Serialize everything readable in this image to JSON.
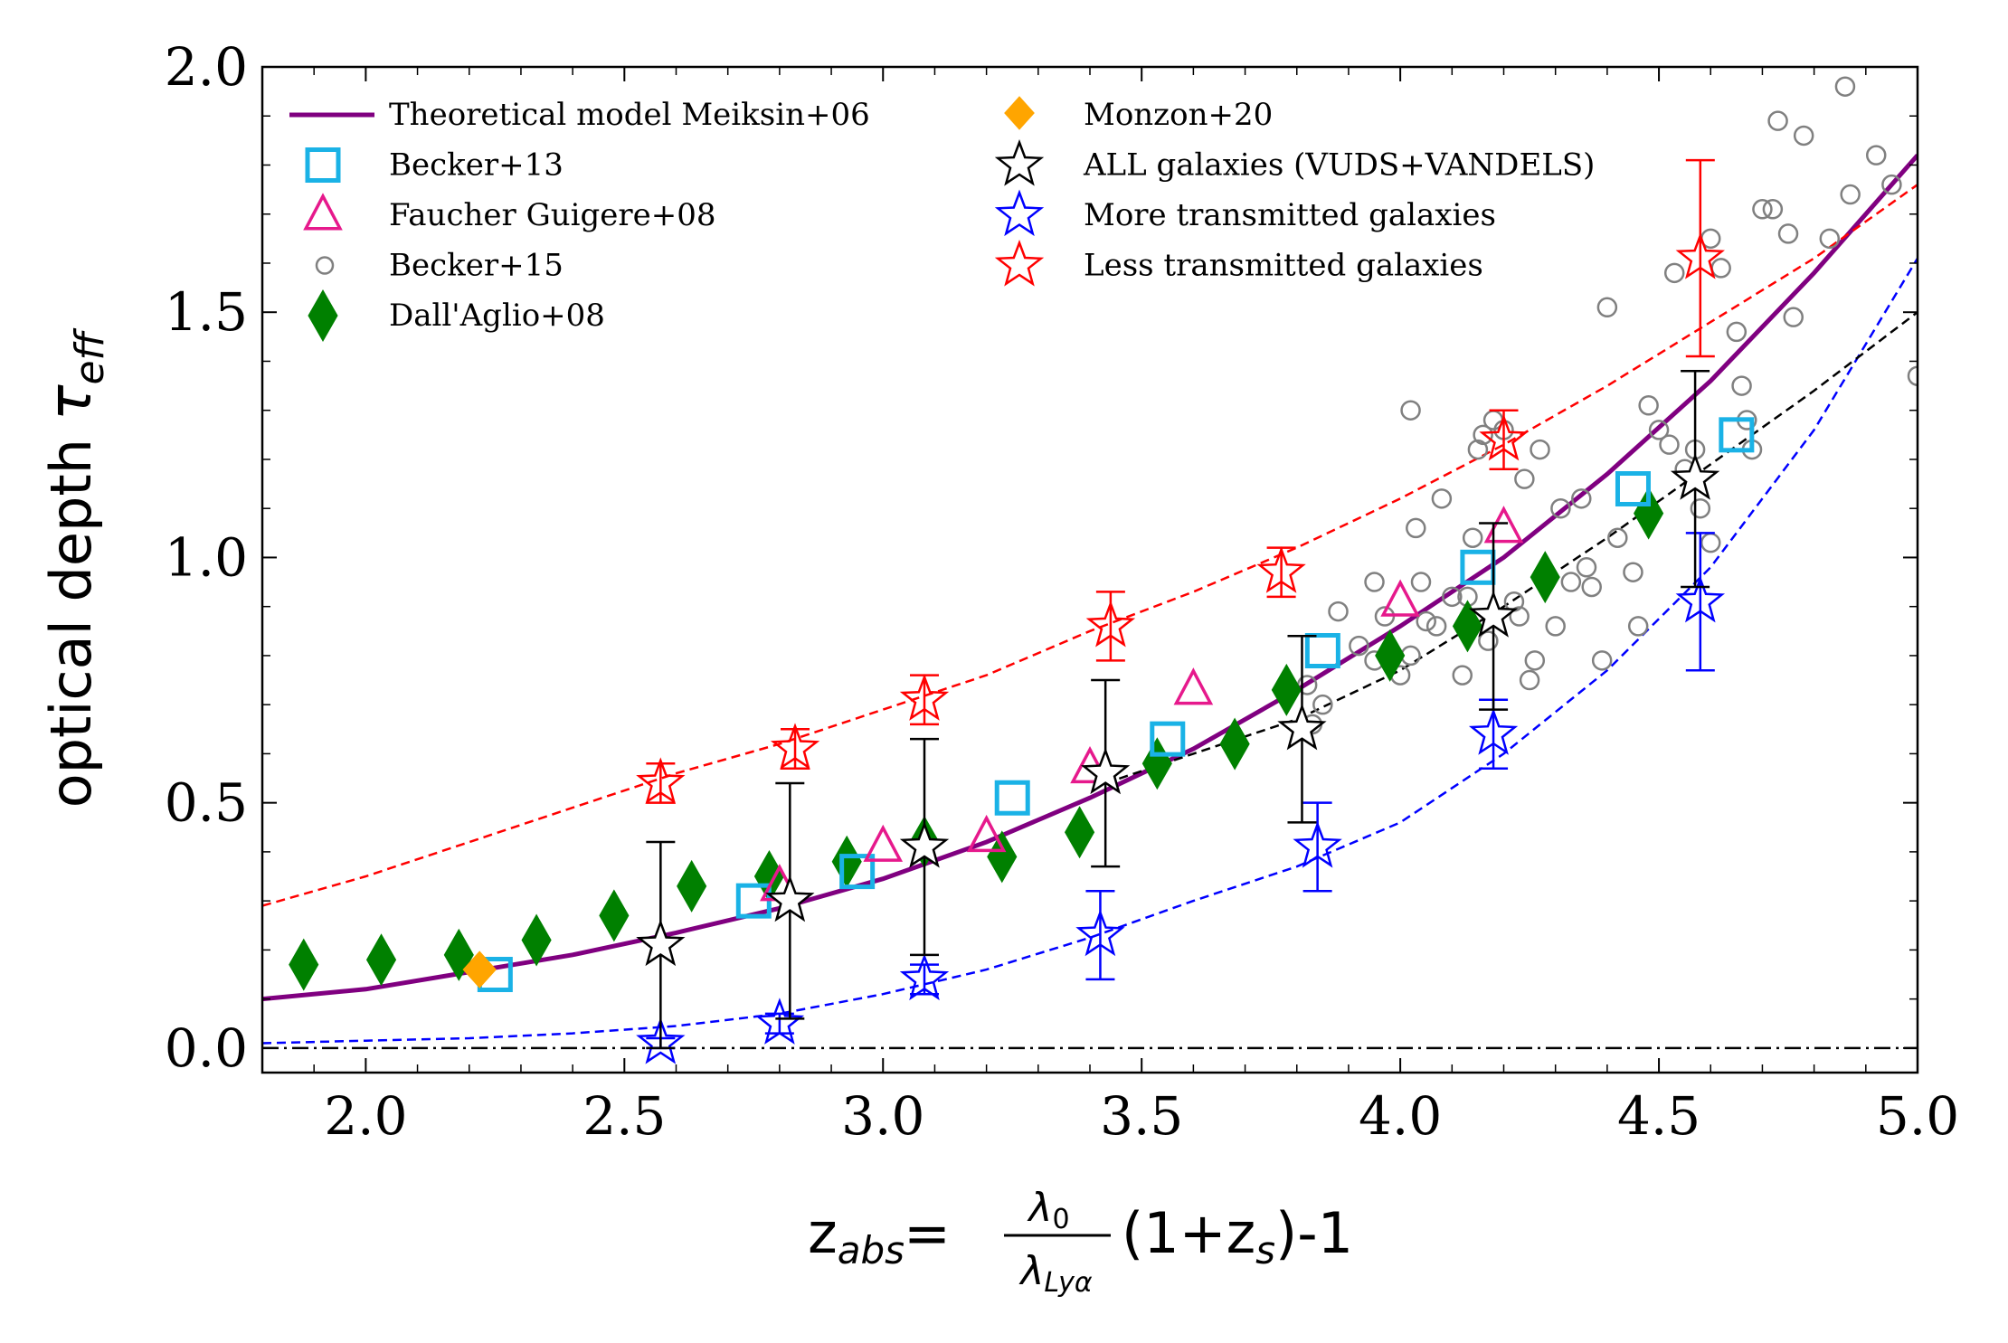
{
  "chart_data": {
    "type": "scatter",
    "title": "",
    "ylabel": {
      "main": "optical depth ",
      "symbol": "τ",
      "sub": "eff"
    },
    "xlabel": {
      "z": "z",
      "abs": "abs",
      "eq": "=",
      "num": "λ",
      "num_sub": "0",
      "den": "λ",
      "den_sub": "Lyα",
      "rest1": "(1+z",
      "rest_sub": "s",
      "rest2": ")-1"
    },
    "xlim": [
      1.8,
      5.0
    ],
    "ylim": [
      -0.05,
      2.0
    ],
    "xticks": [
      {
        "v": 2.0,
        "label": "2.0"
      },
      {
        "v": 2.5,
        "label": "2.5"
      },
      {
        "v": 3.0,
        "label": "3.0"
      },
      {
        "v": 3.5,
        "label": "3.5"
      },
      {
        "v": 4.0,
        "label": "4.0"
      },
      {
        "v": 4.5,
        "label": "4.5"
      },
      {
        "v": 5.0,
        "label": "5.0"
      }
    ],
    "yticks": [
      {
        "v": 0.0,
        "label": "0.0"
      },
      {
        "v": 0.5,
        "label": "0.5"
      },
      {
        "v": 1.0,
        "label": "1.0"
      },
      {
        "v": 1.5,
        "label": "1.5"
      },
      {
        "v": 2.0,
        "label": "2.0"
      }
    ],
    "legend": [
      {
        "name": "Theoretical model Meiksin+06",
        "marker": "line",
        "color": "#800080"
      },
      {
        "name": "Becker+13",
        "marker": "square",
        "color": "#1ab2e6"
      },
      {
        "name": "Faucher Guigere+08",
        "marker": "triangle",
        "color": "#e6198c"
      },
      {
        "name": "Becker+15",
        "marker": "circle",
        "color": "#808080"
      },
      {
        "name": "Dall'Aglio+08",
        "marker": "diamond",
        "color": "#008000"
      },
      {
        "name": "Monzon+20",
        "marker": "diamond-filled",
        "color": "#ffa500"
      },
      {
        "name": "ALL galaxies (VUDS+VANDELS)",
        "marker": "star",
        "color": "#000000"
      },
      {
        "name": "More transmitted galaxies",
        "marker": "star",
        "color": "#0000ff"
      },
      {
        "name": "Less transmitted galaxies",
        "marker": "star",
        "color": "#ff0000"
      }
    ],
    "series": [
      {
        "name": "Becker+13",
        "marker": "square",
        "color": "#1ab2e6",
        "points": [
          [
            2.25,
            0.15
          ],
          [
            2.75,
            0.3
          ],
          [
            2.95,
            0.36
          ],
          [
            3.25,
            0.51
          ],
          [
            3.55,
            0.63
          ],
          [
            3.85,
            0.81
          ],
          [
            4.15,
            0.98
          ],
          [
            4.45,
            1.14
          ],
          [
            4.65,
            1.25
          ]
        ]
      },
      {
        "name": "Faucher Guigere+08",
        "marker": "triangle",
        "color": "#e6198c",
        "points": [
          [
            2.8,
            0.33
          ],
          [
            3.0,
            0.41
          ],
          [
            3.2,
            0.43
          ],
          [
            3.4,
            0.57
          ],
          [
            3.6,
            0.73
          ],
          [
            4.0,
            0.91
          ],
          [
            4.2,
            1.06
          ]
        ]
      },
      {
        "name": "Dall'Aglio+08",
        "marker": "diamond",
        "color": "#008000",
        "points": [
          [
            1.88,
            0.17
          ],
          [
            2.03,
            0.18
          ],
          [
            2.18,
            0.19
          ],
          [
            2.33,
            0.22
          ],
          [
            2.48,
            0.27
          ],
          [
            2.63,
            0.33
          ],
          [
            2.78,
            0.35
          ],
          [
            2.93,
            0.38
          ],
          [
            3.08,
            0.42
          ],
          [
            3.23,
            0.39
          ],
          [
            3.38,
            0.44
          ],
          [
            3.53,
            0.58
          ],
          [
            3.68,
            0.62
          ],
          [
            3.78,
            0.73
          ],
          [
            3.98,
            0.8
          ],
          [
            4.13,
            0.86
          ],
          [
            4.28,
            0.96
          ],
          [
            4.48,
            1.09
          ]
        ]
      },
      {
        "name": "Monzon+20",
        "marker": "diamond-filled",
        "color": "#ffa500",
        "points": [
          [
            2.22,
            0.16
          ]
        ]
      },
      {
        "name": "Becker+15",
        "marker": "circle",
        "color": "#808080",
        "points": [
          [
            3.82,
            0.74
          ],
          [
            3.83,
            0.66
          ],
          [
            3.85,
            0.7
          ],
          [
            3.88,
            0.89
          ],
          [
            3.92,
            0.82
          ],
          [
            3.95,
            0.79
          ],
          [
            3.95,
            0.95
          ],
          [
            3.97,
            0.88
          ],
          [
            4.0,
            0.76
          ],
          [
            4.02,
            0.8
          ],
          [
            4.02,
            1.3
          ],
          [
            4.03,
            1.06
          ],
          [
            4.04,
            0.95
          ],
          [
            4.05,
            0.87
          ],
          [
            4.07,
            0.86
          ],
          [
            4.08,
            1.12
          ],
          [
            4.1,
            0.92
          ],
          [
            4.12,
            0.76
          ],
          [
            4.13,
            0.92
          ],
          [
            4.14,
            1.04
          ],
          [
            4.15,
            1.22
          ],
          [
            4.16,
            1.25
          ],
          [
            4.17,
            0.83
          ],
          [
            4.18,
            1.28
          ],
          [
            4.2,
            1.26
          ],
          [
            4.22,
            0.91
          ],
          [
            4.23,
            0.88
          ],
          [
            4.24,
            1.16
          ],
          [
            4.25,
            0.75
          ],
          [
            4.26,
            0.79
          ],
          [
            4.27,
            1.22
          ],
          [
            4.3,
            0.86
          ],
          [
            4.31,
            1.1
          ],
          [
            4.33,
            0.95
          ],
          [
            4.35,
            1.12
          ],
          [
            4.36,
            0.98
          ],
          [
            4.37,
            0.94
          ],
          [
            4.39,
            0.79
          ],
          [
            4.4,
            1.51
          ],
          [
            4.42,
            1.04
          ],
          [
            4.45,
            0.97
          ],
          [
            4.46,
            0.86
          ],
          [
            4.48,
            1.31
          ],
          [
            4.5,
            1.26
          ],
          [
            4.52,
            1.23
          ],
          [
            4.53,
            1.58
          ],
          [
            4.55,
            1.18
          ],
          [
            4.57,
            1.22
          ],
          [
            4.58,
            1.1
          ],
          [
            4.6,
            1.03
          ],
          [
            4.6,
            1.65
          ],
          [
            4.62,
            1.59
          ],
          [
            4.65,
            1.46
          ],
          [
            4.66,
            1.35
          ],
          [
            4.67,
            1.28
          ],
          [
            4.68,
            1.22
          ],
          [
            4.7,
            1.71
          ],
          [
            4.72,
            1.71
          ],
          [
            4.73,
            1.89
          ],
          [
            4.75,
            1.66
          ],
          [
            4.76,
            1.49
          ],
          [
            4.78,
            1.86
          ],
          [
            4.83,
            1.65
          ],
          [
            4.86,
            1.96
          ],
          [
            4.87,
            1.74
          ],
          [
            4.92,
            1.82
          ],
          [
            4.95,
            1.76
          ],
          [
            5.0,
            1.37
          ]
        ]
      },
      {
        "name": "ALL galaxies (VUDS+VANDELS)",
        "marker": "star",
        "color": "#000000",
        "points": [
          [
            2.57,
            0.21,
            0.21,
            0.21
          ],
          [
            2.82,
            0.3,
            0.24,
            0.24
          ],
          [
            3.08,
            0.41,
            0.22,
            0.22
          ],
          [
            3.43,
            0.56,
            0.19,
            0.19
          ],
          [
            3.81,
            0.65,
            0.19,
            0.19
          ],
          [
            4.18,
            0.88,
            0.19,
            0.19
          ],
          [
            4.57,
            1.16,
            0.22,
            0.22
          ]
        ]
      },
      {
        "name": "More transmitted galaxies",
        "marker": "star",
        "color": "#0000ff",
        "points": [
          [
            2.57,
            0.01,
            0.01,
            0.01
          ],
          [
            2.8,
            0.05,
            0.02,
            0.02
          ],
          [
            3.08,
            0.14,
            0.03,
            0.03
          ],
          [
            3.42,
            0.23,
            0.09,
            0.09
          ],
          [
            3.84,
            0.41,
            0.09,
            0.09
          ],
          [
            4.18,
            0.64,
            0.07,
            0.07
          ],
          [
            4.58,
            0.91,
            0.14,
            0.14
          ]
        ]
      },
      {
        "name": "Less transmitted galaxies",
        "marker": "star",
        "color": "#ff0000",
        "points": [
          [
            2.57,
            0.54,
            0.04,
            0.04
          ],
          [
            2.83,
            0.61,
            0.04,
            0.04
          ],
          [
            3.08,
            0.71,
            0.05,
            0.05
          ],
          [
            3.44,
            0.86,
            0.07,
            0.07
          ],
          [
            3.77,
            0.97,
            0.05,
            0.05
          ],
          [
            4.2,
            1.24,
            0.06,
            0.06
          ],
          [
            4.58,
            1.61,
            0.2,
            0.2
          ]
        ]
      }
    ],
    "curves": [
      {
        "name": "Theoretical model Meiksin+06",
        "style": "solid",
        "color": "#800080",
        "points": [
          [
            1.8,
            0.1
          ],
          [
            2.0,
            0.12
          ],
          [
            2.2,
            0.155
          ],
          [
            2.4,
            0.19
          ],
          [
            2.6,
            0.235
          ],
          [
            2.8,
            0.285
          ],
          [
            3.0,
            0.345
          ],
          [
            3.2,
            0.42
          ],
          [
            3.4,
            0.51
          ],
          [
            3.6,
            0.61
          ],
          [
            3.8,
            0.73
          ],
          [
            4.0,
            0.86
          ],
          [
            4.2,
            1.0
          ],
          [
            4.4,
            1.17
          ],
          [
            4.6,
            1.36
          ],
          [
            4.8,
            1.58
          ],
          [
            5.0,
            1.82
          ]
        ]
      },
      {
        "name": "fit less transmitted",
        "style": "dashed",
        "color": "#ff0000",
        "points": [
          [
            1.8,
            0.29
          ],
          [
            2.0,
            0.35
          ],
          [
            2.2,
            0.42
          ],
          [
            2.4,
            0.49
          ],
          [
            2.6,
            0.56
          ],
          [
            2.8,
            0.62
          ],
          [
            3.0,
            0.69
          ],
          [
            3.2,
            0.76
          ],
          [
            3.4,
            0.85
          ],
          [
            3.6,
            0.93
          ],
          [
            3.8,
            1.02
          ],
          [
            4.0,
            1.12
          ],
          [
            4.2,
            1.23
          ],
          [
            4.4,
            1.35
          ],
          [
            4.6,
            1.48
          ],
          [
            4.8,
            1.61
          ],
          [
            5.0,
            1.76
          ]
        ]
      },
      {
        "name": "fit more transmitted",
        "style": "dashed",
        "color": "#0000ff",
        "points": [
          [
            1.8,
            0.01
          ],
          [
            2.0,
            0.015
          ],
          [
            2.2,
            0.02
          ],
          [
            2.4,
            0.03
          ],
          [
            2.6,
            0.045
          ],
          [
            2.8,
            0.07
          ],
          [
            3.0,
            0.11
          ],
          [
            3.2,
            0.16
          ],
          [
            3.4,
            0.225
          ],
          [
            3.6,
            0.3
          ],
          [
            3.8,
            0.37
          ],
          [
            4.0,
            0.46
          ],
          [
            4.2,
            0.6
          ],
          [
            4.4,
            0.77
          ],
          [
            4.6,
            0.98
          ],
          [
            4.8,
            1.26
          ],
          [
            5.0,
            1.61
          ]
        ]
      },
      {
        "name": "fit all galaxies",
        "style": "dashed",
        "color": "#000000",
        "points": [
          [
            3.43,
            0.54
          ],
          [
            3.6,
            0.6
          ],
          [
            3.8,
            0.67
          ],
          [
            4.0,
            0.77
          ],
          [
            4.2,
            0.9
          ],
          [
            4.4,
            1.04
          ],
          [
            4.6,
            1.19
          ],
          [
            4.8,
            1.34
          ],
          [
            5.0,
            1.5
          ]
        ]
      },
      {
        "name": "zero line",
        "style": "dashdot",
        "color": "#000000",
        "points": [
          [
            1.8,
            0.0
          ],
          [
            5.0,
            0.0
          ]
        ]
      }
    ]
  }
}
